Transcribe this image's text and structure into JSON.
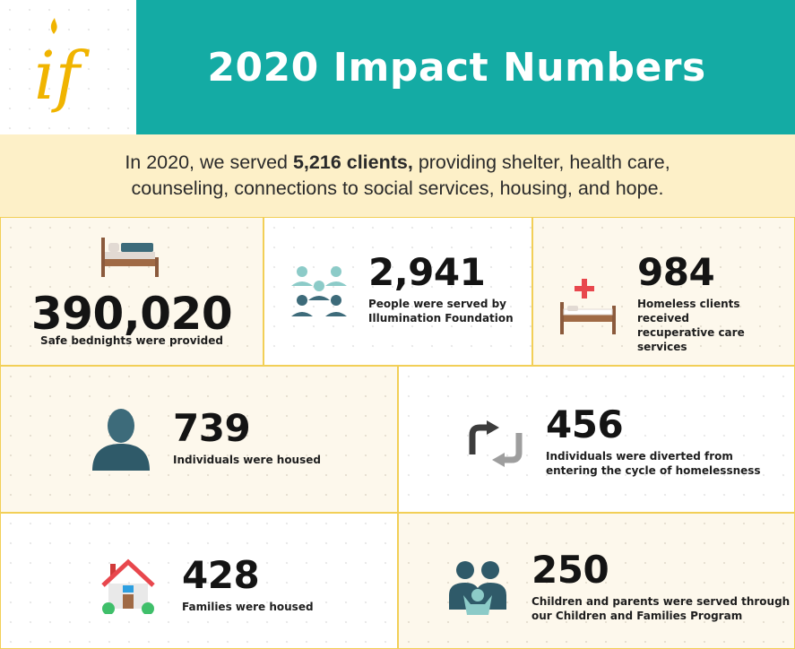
{
  "header": {
    "title": "2020 Impact Numbers"
  },
  "intro": {
    "part1": "In 2020, we served ",
    "highlight": "5,216 clients,",
    "part2": " providing shelter, health care,",
    "line2": "counseling, connections to social services, housing, and hope."
  },
  "stats": [
    {
      "value": "390,020",
      "label": "Safe bednights were provided",
      "icon": "bed-icon"
    },
    {
      "value": "2,941",
      "label1": "People were served by",
      "label2": "Illumination Foundation",
      "icon": "people-group-icon"
    },
    {
      "value": "984",
      "label1": "Homeless clients received",
      "label2": "recuperative care services",
      "icon": "medical-bed-icon"
    },
    {
      "value": "739",
      "label": "Individuals were housed",
      "icon": "person-icon"
    },
    {
      "value": "456",
      "label1": "Individuals were diverted from",
      "label2": "entering the cycle of homelessness",
      "icon": "cycle-arrows-icon"
    },
    {
      "value": "428",
      "label": "Families were housed",
      "icon": "house-icon"
    },
    {
      "value": "250",
      "label1": "Children and parents were served through",
      "label2": "our Children and Families Program",
      "icon": "family-icon"
    }
  ],
  "colors": {
    "teal": "#14aba4",
    "cream": "#fdf0c8",
    "gold": "#f2cf57",
    "logo": "#f0b400"
  }
}
